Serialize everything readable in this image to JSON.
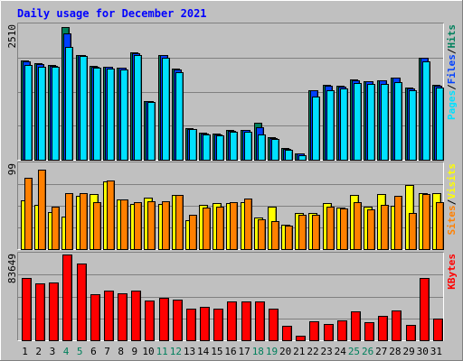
{
  "chart_data": [
    {
      "type": "bar",
      "title": "Daily usage for December 2021",
      "panel": "hits-files-pages",
      "ylabel_parts": [
        "Pages",
        "/",
        "Files",
        "/",
        "Hits"
      ],
      "ymax_label": "2510",
      "ylim": [
        0,
        2510
      ],
      "categories": [
        "1",
        "2",
        "3",
        "4",
        "5",
        "6",
        "7",
        "8",
        "9",
        "10",
        "11",
        "12",
        "13",
        "14",
        "15",
        "16",
        "17",
        "18",
        "19",
        "20",
        "21",
        "22",
        "23",
        "24",
        "25",
        "26",
        "27",
        "28",
        "29",
        "30",
        "31"
      ],
      "weekend_days": [
        4,
        5,
        11,
        12,
        18,
        19,
        25,
        26
      ],
      "series": [
        {
          "name": "Hits",
          "values": [
            1860,
            1810,
            1770,
            2480,
            1960,
            1750,
            1740,
            1720,
            2010,
            1100,
            1960,
            1700,
            590,
            500,
            490,
            550,
            560,
            690,
            420,
            220,
            120,
            1300,
            1390,
            1380,
            1500,
            1470,
            1490,
            1540,
            1340,
            1910,
            1390
          ]
        },
        {
          "name": "Files",
          "values": [
            1840,
            1790,
            1760,
            2360,
            1950,
            1740,
            1730,
            1710,
            1990,
            1090,
            1950,
            1690,
            580,
            490,
            480,
            540,
            550,
            600,
            410,
            210,
            110,
            1290,
            1380,
            1370,
            1490,
            1460,
            1480,
            1530,
            1330,
            1900,
            1380
          ]
        },
        {
          "name": "Pages",
          "values": [
            1770,
            1740,
            1740,
            2110,
            1930,
            1720,
            1700,
            1690,
            1960,
            1070,
            1910,
            1640,
            570,
            470,
            460,
            520,
            530,
            480,
            380,
            190,
            90,
            1180,
            1290,
            1330,
            1440,
            1420,
            1420,
            1450,
            1300,
            1840,
            1340
          ]
        }
      ]
    },
    {
      "type": "bar",
      "panel": "visits-sites",
      "ylabel_parts": [
        "Sites",
        "/",
        "Visits"
      ],
      "ymax_label": "99",
      "ylim": [
        0,
        99
      ],
      "series": [
        {
          "name": "Visits",
          "values": [
            57,
            52,
            43,
            38,
            62,
            64,
            79,
            58,
            53,
            60,
            53,
            63,
            34,
            52,
            54,
            54,
            55,
            37,
            49,
            28,
            42,
            42,
            54,
            48,
            63,
            50,
            64,
            51,
            75,
            65,
            65
          ]
        },
        {
          "name": "Sites",
          "values": [
            83,
            93,
            50,
            65,
            65,
            55,
            80,
            58,
            55,
            56,
            56,
            63,
            40,
            48,
            50,
            55,
            59,
            35,
            33,
            27,
            40,
            40,
            50,
            47,
            55,
            46,
            52,
            62,
            42,
            64,
            55
          ]
        }
      ]
    },
    {
      "type": "bar",
      "panel": "kbytes",
      "ylabel_parts": [
        "KBytes"
      ],
      "ymax_label": "83649",
      "ylim": [
        0,
        83649
      ],
      "series": [
        {
          "name": "KBytes",
          "values": [
            60800,
            55500,
            56500,
            84000,
            74500,
            44500,
            48500,
            45500,
            48500,
            39000,
            41000,
            40000,
            30500,
            32500,
            31000,
            38000,
            38000,
            38000,
            31000,
            14000,
            4000,
            18500,
            15500,
            19000,
            28000,
            18000,
            24000,
            29000,
            15000,
            60800,
            21000
          ]
        }
      ]
    }
  ],
  "colors": {
    "background": "#c0c0c0",
    "plot_background": "#c0c0c0",
    "title": "#0000ff",
    "hits": "#00805c",
    "files": "#0040ff",
    "pages": "#00e0ff",
    "visits": "#ffff00",
    "sites": "#ff8000",
    "kbytes": "#ff0000",
    "weekend": "#00805c",
    "weekday": "#000000"
  }
}
